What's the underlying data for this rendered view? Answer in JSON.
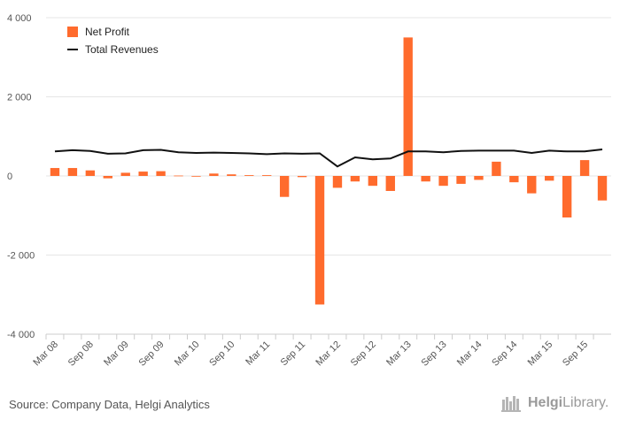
{
  "chart_data": {
    "type": "bar",
    "title": "",
    "xlabel": "",
    "ylabel": "",
    "ylim": [
      -4000,
      4000
    ],
    "yticks": [
      4000,
      2000,
      0,
      -2000,
      -4000
    ],
    "ytick_labels": [
      "4 000",
      "2 000",
      "0",
      "-2 000",
      "-4 000"
    ],
    "grid": true,
    "legend_position": "top-left",
    "x": [
      "Mar 08",
      "Jun 08",
      "Sep 08",
      "Dec 08",
      "Mar 09",
      "Jun 09",
      "Sep 09",
      "Dec 09",
      "Mar 10",
      "Jun 10",
      "Sep 10",
      "Dec 10",
      "Mar 11",
      "Jun 11",
      "Sep 11",
      "Dec 11",
      "Mar 12",
      "Jun 12",
      "Sep 12",
      "Dec 12",
      "Mar 13",
      "Jun 13",
      "Sep 13",
      "Dec 13",
      "Mar 14",
      "Jun 14",
      "Sep 14",
      "Dec 14",
      "Mar 15",
      "Jun 15",
      "Sep 15",
      "Dec 15"
    ],
    "xtick_labels": [
      "Mar 08",
      "Sep 08",
      "Mar 09",
      "Sep 09",
      "Mar 10",
      "Sep 10",
      "Mar 11",
      "Sep 11",
      "Mar 12",
      "Sep 12",
      "Mar 13",
      "Sep 13",
      "Mar 14",
      "Sep 14",
      "Mar 15",
      "Sep 15"
    ],
    "series": [
      {
        "name": "Net Profit",
        "type": "bar",
        "color": "#ff6b2d",
        "values": [
          200,
          200,
          140,
          -60,
          80,
          110,
          120,
          10,
          0,
          60,
          40,
          20,
          20,
          -530,
          -30,
          -3250,
          -300,
          -140,
          -250,
          -380,
          3500,
          -140,
          -250,
          -200,
          -100,
          360,
          -160,
          -440,
          -120,
          -1050,
          400,
          -620
        ]
      },
      {
        "name": "Total Revenues",
        "type": "line",
        "color": "#111111",
        "values": [
          620,
          650,
          630,
          560,
          570,
          650,
          660,
          600,
          580,
          590,
          580,
          570,
          550,
          570,
          560,
          570,
          240,
          470,
          420,
          440,
          620,
          620,
          600,
          630,
          640,
          640,
          640,
          580,
          640,
          620,
          620,
          670
        ]
      }
    ]
  },
  "footer": {
    "source": "Source: Company Data, Helgi Analytics",
    "brand_part1": "Helgi",
    "brand_part2": "Library."
  }
}
